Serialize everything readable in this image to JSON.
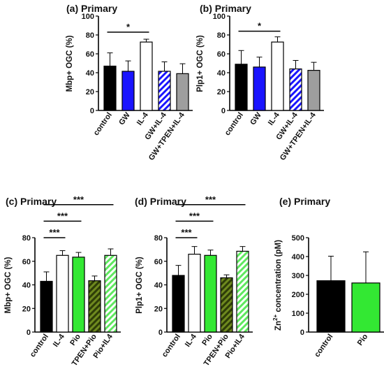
{
  "chart_data": [
    {
      "type": "bar",
      "title": "(a) Primary",
      "ylabel": "Mbp+ OGC (%)",
      "ylim": [
        0,
        100
      ],
      "yticks": [
        0,
        20,
        40,
        60,
        80,
        100
      ],
      "categories": [
        "control",
        "GW",
        "IL-4",
        "GW+IL-4",
        "GW+TPEN+IL-4"
      ],
      "values": [
        47,
        41.5,
        72.5,
        41.5,
        39
      ],
      "errors": [
        14,
        11,
        3,
        10,
        10.5
      ],
      "fills": [
        "#000000",
        "#1a14ff",
        "#ffffff",
        "hatch-blue",
        "#9e9e9e"
      ],
      "significance": [
        {
          "from": 0,
          "to": 2,
          "label": "*",
          "y": 83
        }
      ]
    },
    {
      "type": "bar",
      "title": "(b) Primary",
      "ylabel": "Plp1+ OGC (%)",
      "ylim": [
        0,
        100
      ],
      "yticks": [
        0,
        20,
        40,
        60,
        80,
        100
      ],
      "categories": [
        "control",
        "GW",
        "IL-4",
        "GW+IL-4",
        "GW+TPEN+IL-4"
      ],
      "values": [
        49,
        46,
        72.5,
        44,
        42.5
      ],
      "errors": [
        14.5,
        10.5,
        5.5,
        9,
        8.5
      ],
      "fills": [
        "#000000",
        "#1a14ff",
        "#ffffff",
        "hatch-blue",
        "#9e9e9e"
      ],
      "significance": [
        {
          "from": 0,
          "to": 2,
          "label": "*",
          "y": 84
        }
      ]
    },
    {
      "type": "bar",
      "title": "(c) Primary",
      "ylabel": "Mbp+ OGC (%)",
      "ylim": [
        0,
        80
      ],
      "yticks": [
        0,
        20,
        40,
        60,
        80
      ],
      "categories": [
        "control",
        "IL-4",
        "Pio",
        "TPEN+Pio",
        "Pio+IL4"
      ],
      "values": [
        43,
        65,
        63.5,
        43.5,
        65
      ],
      "errors": [
        8,
        4,
        4,
        4,
        5.5
      ],
      "fills": [
        "#000000",
        "#ffffff",
        "#33e833",
        "hatch-olive",
        "hatch-lightgreen"
      ],
      "significance": [
        {
          "from": 0,
          "to": 1,
          "label": "***",
          "y": 80
        },
        {
          "from": 0,
          "to": 2,
          "label": "***",
          "y": 94
        },
        {
          "from": 0,
          "to": 4,
          "label": "***",
          "y": 108
        }
      ]
    },
    {
      "type": "bar",
      "title": "(d) Primary",
      "ylabel": "Plp1+ OGC (%)",
      "ylim": [
        0,
        80
      ],
      "yticks": [
        0,
        20,
        40,
        60,
        80
      ],
      "categories": [
        "control",
        "IL-4",
        "Pio",
        "TPEN+Pio",
        "Pio+IL4"
      ],
      "values": [
        48,
        66,
        65,
        46,
        68.5
      ],
      "errors": [
        8.5,
        6.5,
        4.5,
        2.5,
        4
      ],
      "fills": [
        "#000000",
        "#ffffff",
        "#33e833",
        "hatch-olive",
        "hatch-lightgreen"
      ],
      "significance": [
        {
          "from": 0,
          "to": 1,
          "label": "***",
          "y": 80
        },
        {
          "from": 0,
          "to": 2,
          "label": "***",
          "y": 94
        },
        {
          "from": 0,
          "to": 4,
          "label": "***",
          "y": 108
        }
      ]
    },
    {
      "type": "bar",
      "title": "(e) Primary",
      "ylabel_main": "Zn",
      "ylabel_sup": "2+",
      "ylabel_rest": " concentration (pM)",
      "ylim": [
        0,
        500
      ],
      "yticks": [
        0,
        100,
        200,
        300,
        400,
        500
      ],
      "categories": [
        "control",
        "Pio"
      ],
      "values": [
        272,
        260
      ],
      "errors": [
        130,
        165
      ],
      "fills": [
        "#000000",
        "#33e833"
      ],
      "significance": []
    }
  ]
}
